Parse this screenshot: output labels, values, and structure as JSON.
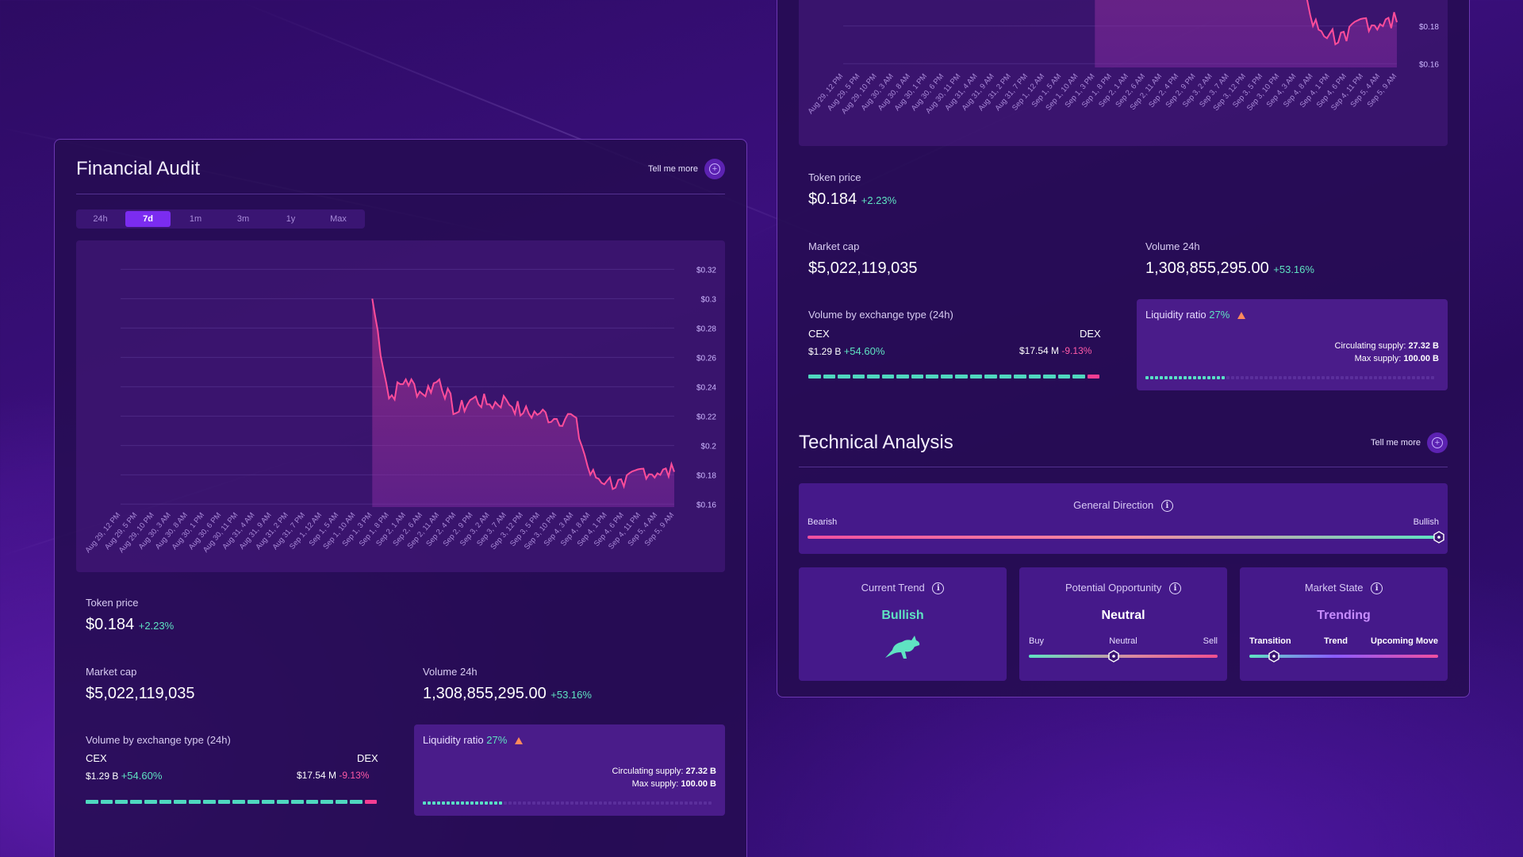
{
  "colors": {
    "accent": "#7b2cf0",
    "positive": "#5fe3c2",
    "negative": "#ff5aa7",
    "line": "#ff4d9a",
    "warning": "#ff8a5c"
  },
  "chart_data": {
    "type": "area",
    "x": [
      "Aug 29, 12 PM",
      "Aug 29, 5 PM",
      "Aug 29, 10 PM",
      "Aug 30, 3 AM",
      "Aug 30, 8 AM",
      "Aug 30, 1 PM",
      "Aug 30, 6 PM",
      "Aug 30, 11 PM",
      "Aug 31, 4 AM",
      "Aug 31, 9 AM",
      "Aug 31, 2 PM",
      "Aug 31, 7 PM",
      "Sep 1, 12 AM",
      "Sep 1, 5 AM",
      "Sep 1, 10 AM",
      "Sep 1, 3 PM",
      "Sep 1, 8 PM",
      "Sep 2, 1 AM",
      "Sep 2, 6 AM",
      "Sep 2, 11 AM",
      "Sep 2, 4 PM",
      "Sep 2, 9 PM",
      "Sep 3, 2 AM",
      "Sep 3, 7 AM",
      "Sep 3, 12 PM",
      "Sep 3, 5 PM",
      "Sep 3, 10 PM",
      "Sep 4, 3 AM",
      "Sep 4, 8 AM",
      "Sep 4, 1 PM",
      "Sep 4, 6 PM",
      "Sep 4, 11 PM",
      "Sep 5, 4 AM",
      "Sep 5, 9 AM"
    ],
    "y": [
      null,
      null,
      null,
      null,
      null,
      null,
      null,
      null,
      null,
      null,
      null,
      null,
      null,
      null,
      null,
      0.3,
      0.232,
      0.245,
      0.235,
      0.245,
      0.222,
      0.232,
      0.228,
      0.231,
      0.222,
      0.222,
      0.218,
      0.22,
      0.18,
      0.176,
      0.172,
      0.184,
      0.181,
      0.182
    ],
    "yticks": [
      "$0.32",
      "$0.3",
      "$0.28",
      "$0.26",
      "$0.24",
      "$0.22",
      "$0.2",
      "$0.18",
      "$0.16"
    ],
    "ylim": [
      0.158,
      0.324
    ],
    "grid": true
  },
  "left": {
    "title": "Financial Audit",
    "tell_more": "Tell me more",
    "tabs": [
      "24h",
      "7d",
      "1m",
      "3m",
      "1y",
      "Max"
    ],
    "token_price": {
      "label": "Token price",
      "value": "$0.184",
      "change": "+2.23%"
    },
    "market_cap": {
      "label": "Market cap",
      "value": "$5,022,119,035"
    },
    "volume": {
      "label": "Volume 24h",
      "value": "1,308,855,295.00",
      "change": "+53.16%"
    },
    "exchange": {
      "label": "Volume by exchange type (24h)",
      "cex": "CEX",
      "dex": "DEX",
      "cex_value": "$1.29 B",
      "cex_change": "+54.60%",
      "dex_value": "$17.54 M",
      "dex_change": "-9.13%"
    },
    "liquidity": {
      "label": "Liquidity ratio",
      "percent": "27%",
      "circ_label": "Circulating supply:",
      "circ_value": "27.32 B",
      "max_label": "Max supply:",
      "max_value": "100.00 B",
      "fill": 0.27
    }
  },
  "right": {
    "token_price": {
      "label": "Token price",
      "value": "$0.184",
      "change": "+2.23%"
    },
    "market_cap": {
      "label": "Market cap",
      "value": "$5,022,119,035"
    },
    "volume": {
      "label": "Volume 24h",
      "value": "1,308,855,295.00",
      "change": "+53.16%"
    },
    "exchange": {
      "label": "Volume by exchange type (24h)",
      "cex": "CEX",
      "dex": "DEX",
      "cex_value": "$1.29 B",
      "cex_change": "+54.60%",
      "dex_value": "$17.54 M",
      "dex_change": "-9.13%"
    },
    "liquidity": {
      "label": "Liquidity ratio",
      "percent": "27%",
      "circ_label": "Circulating supply:",
      "circ_value": "27.32 B",
      "max_label": "Max supply:",
      "max_value": "100.00 B",
      "fill": 0.27
    },
    "ta": {
      "title": "Technical Analysis",
      "tell_more": "Tell me more",
      "general_direction": "General Direction",
      "bearish": "Bearish",
      "bullish": "Bullish",
      "direction_level": 1.0,
      "current_trend": {
        "title": "Current Trend",
        "value": "Bullish"
      },
      "opportunity": {
        "title": "Potential Opportunity",
        "value": "Neutral",
        "buy": "Buy",
        "neutral": "Neutral",
        "sell": "Sell",
        "level": 0.45
      },
      "market_state": {
        "title": "Market State",
        "value": "Trending",
        "transition": "Transition",
        "trend": "Trend",
        "upcoming": "Upcoming Move",
        "level": 0.13
      }
    }
  }
}
